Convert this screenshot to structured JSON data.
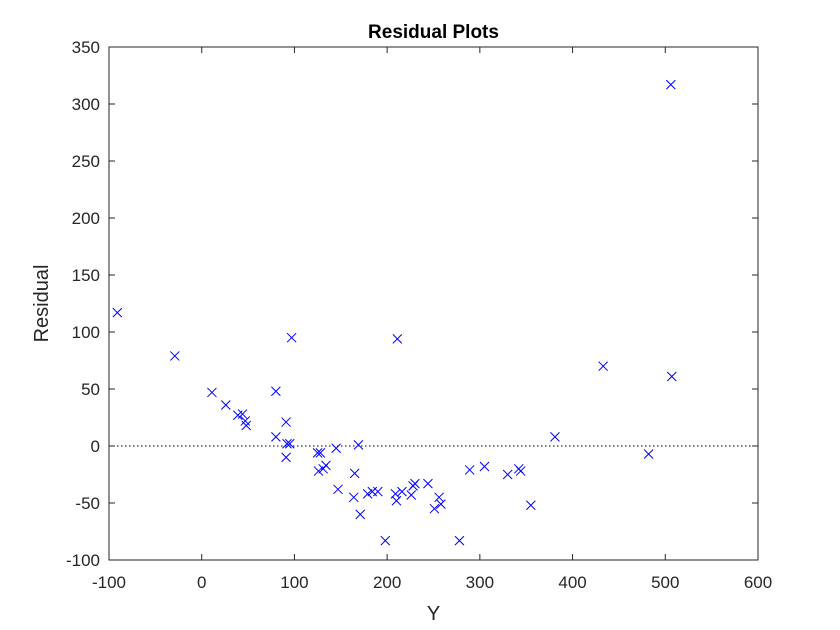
{
  "chart_data": {
    "type": "scatter",
    "title": "Residual Plots",
    "xlabel": "Y",
    "ylabel": "Residual",
    "xlim": [
      -100,
      600
    ],
    "ylim": [
      -100,
      350
    ],
    "xticks": [
      "-100",
      "0",
      "100",
      "200",
      "300",
      "400",
      "500",
      "600"
    ],
    "yticks": [
      "-100",
      "-50",
      "0",
      "50",
      "100",
      "150",
      "200",
      "250",
      "300",
      "350"
    ],
    "grid": false,
    "zero_line": 0,
    "marker": "x",
    "marker_color": "#0000ff",
    "zero_line_color": "#000000",
    "series": [
      {
        "x": [
          -91,
          -29,
          11,
          26,
          39,
          44,
          47,
          48,
          80,
          80,
          91,
          91,
          92,
          95,
          97,
          125,
          126,
          128,
          131,
          134,
          145,
          147,
          164,
          165,
          169,
          171,
          179,
          184,
          190,
          198,
          209,
          210,
          211,
          216,
          226,
          228,
          230,
          244,
          251,
          256,
          258,
          278,
          289,
          305,
          330,
          342,
          344,
          355,
          381,
          433,
          482,
          506,
          507
        ],
        "y": [
          117,
          79,
          47,
          36,
          27,
          28,
          22,
          18,
          48,
          8,
          21,
          -10,
          2,
          2,
          95,
          -6,
          -22,
          -6,
          -20,
          -17,
          -2,
          -38,
          -45,
          -24,
          1,
          -60,
          -42,
          -40,
          -40,
          -83,
          -42,
          -48,
          94,
          -40,
          -43,
          -35,
          -33,
          -33,
          -55,
          -45,
          -51,
          -83,
          -21,
          -18,
          -25,
          -20,
          -22,
          -52,
          8,
          70,
          -7,
          317,
          61
        ]
      }
    ]
  }
}
